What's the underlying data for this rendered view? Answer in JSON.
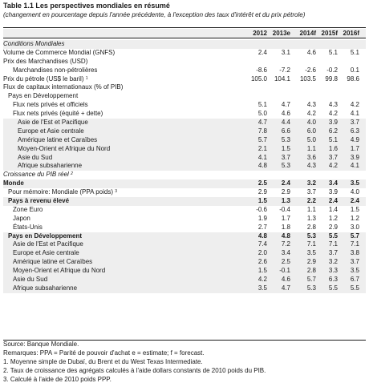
{
  "title": "Table 1.1 Les perspectives mondiales en résumé",
  "subtitle": "(changement en pourcentage depuis l'année précédente, à l'exception des taux d'intérêt et du prix pétrole)",
  "columns": [
    "2012",
    "2013e",
    "2014f",
    "2015f",
    "2016f"
  ],
  "rows": [
    {
      "label": "Conditions Mondiales",
      "level": 0,
      "italic": true,
      "shaded": true,
      "values": []
    },
    {
      "label": "Volume de Commerce Mondial (GNFS)",
      "level": 0,
      "values": [
        "2.4",
        "3.1",
        "4.6",
        "5.1",
        "5.1"
      ]
    },
    {
      "label": "Prix des Marchandises (USD)",
      "level": 0,
      "values": []
    },
    {
      "label": "Marchandises non-pétrolières",
      "level": 2,
      "values": [
        "-8.6",
        "-7.2",
        "-2.6",
        "-0.2",
        "0.1"
      ]
    },
    {
      "label": "Prix du pétrole (US$ le baril)",
      "sup": "1",
      "level": 0,
      "values": [
        "105.0",
        "104.1",
        "103.5",
        "99.8",
        "98.6"
      ]
    },
    {
      "label": "Flux de capitaux internationaux (% of PIB)",
      "level": 0,
      "values": []
    },
    {
      "label": "Pays en Développement",
      "level": 1,
      "values": []
    },
    {
      "label": "Flux nets privés et officiels",
      "level": 2,
      "values": [
        "5.1",
        "4.7",
        "4.3",
        "4.3",
        "4.2"
      ]
    },
    {
      "label": "Flux nets privés (équité + dette)",
      "level": 2,
      "values": [
        "5.0",
        "4.6",
        "4.2",
        "4.2",
        "4.1"
      ]
    },
    {
      "label": "Asie de l'Est et Pacifique",
      "level": 3,
      "shaded": true,
      "values": [
        "4.7",
        "4.4",
        "4.0",
        "3.9",
        "3.7"
      ]
    },
    {
      "label": "Europe et Asie centrale",
      "level": 3,
      "shaded": true,
      "values": [
        "7.8",
        "6.6",
        "6.0",
        "6.2",
        "6.3"
      ]
    },
    {
      "label": "Amérique latine et Caraïbes",
      "level": 3,
      "shaded": true,
      "values": [
        "5.7",
        "5.3",
        "5.0",
        "5.1",
        "4.9"
      ]
    },
    {
      "label": "Moyen-Orient et Afrique du Nord",
      "level": 3,
      "shaded": true,
      "values": [
        "2.1",
        "1.5",
        "1.1",
        "1.6",
        "1.7"
      ]
    },
    {
      "label": "Asie du Sud",
      "level": 3,
      "shaded": true,
      "values": [
        "4.1",
        "3.7",
        "3.6",
        "3.7",
        "3.9"
      ]
    },
    {
      "label": "Afrique subsaharienne",
      "level": 3,
      "shaded": true,
      "values": [
        "4.8",
        "5.3",
        "4.3",
        "4.2",
        "4.1"
      ]
    },
    {
      "label": "Croissance du PIB réel",
      "sup": "2",
      "level": 0,
      "italic": true,
      "values": []
    },
    {
      "label": "Monde",
      "level": 0,
      "bold": true,
      "shaded": true,
      "values": [
        "2.5",
        "2.4",
        "3.2",
        "3.4",
        "3.5"
      ]
    },
    {
      "label": "Pour mémoire: Mondiale (PPA poids)",
      "sup": "3",
      "level": 1,
      "values": [
        "2.9",
        "2.9",
        "3.7",
        "3.9",
        "4.0"
      ]
    },
    {
      "label": "Pays à revenu élevé",
      "level": 1,
      "bold": true,
      "shaded": true,
      "values": [
        "1.5",
        "1.3",
        "2.2",
        "2.4",
        "2.4"
      ]
    },
    {
      "label": "Zone Euro",
      "level": 2,
      "values": [
        "-0.6",
        "-0.4",
        "1.1",
        "1.4",
        "1.5"
      ]
    },
    {
      "label": "Japon",
      "level": 2,
      "values": [
        "1.9",
        "1.7",
        "1.3",
        "1.2",
        "1.2"
      ]
    },
    {
      "label": "États-Unis",
      "level": 2,
      "values": [
        "2.7",
        "1.8",
        "2.8",
        "2.9",
        "3.0"
      ]
    },
    {
      "label": "Pays en Développement",
      "level": 1,
      "bold": true,
      "shaded": true,
      "values": [
        "4.8",
        "4.8",
        "5.3",
        "5.5",
        "5.7"
      ]
    },
    {
      "label": "Asie de l'Est et Pacifique",
      "level": 2,
      "shaded": true,
      "values": [
        "7.4",
        "7.2",
        "7.1",
        "7.1",
        "7.1"
      ]
    },
    {
      "label": "Europe et Asie centrale",
      "level": 2,
      "shaded": true,
      "values": [
        "2.0",
        "3.4",
        "3.5",
        "3.7",
        "3.8"
      ]
    },
    {
      "label": "Amérique latine et Caraïbes",
      "level": 2,
      "shaded": true,
      "values": [
        "2.6",
        "2.5",
        "2.9",
        "3.2",
        "3.7"
      ]
    },
    {
      "label": "Moyen-Orient et Afrique du Nord",
      "level": 2,
      "shaded": true,
      "values": [
        "1.5",
        "-0.1",
        "2.8",
        "3.3",
        "3.5"
      ]
    },
    {
      "label": "Asie du Sud",
      "level": 2,
      "shaded": true,
      "values": [
        "4.2",
        "4.6",
        "5.7",
        "6.3",
        "6.7"
      ]
    },
    {
      "label": "Afrique subsaharienne",
      "level": 2,
      "shaded": true,
      "values": [
        "3.5",
        "4.7",
        "5.3",
        "5.5",
        "5.5"
      ]
    }
  ],
  "notes": {
    "source": "Source: Banque Mondiale.",
    "remarks": "Remarques: PPA = Parité de pouvoir d'achat e = estimate; f = forecast.",
    "note1": "1. Moyenne simple de Dubaï, du Brent et du West Texas Intermediate.",
    "note2": "2. Taux de croissance des agrégats calculés à l'aide dollars constants de 2010 poids du PIB.",
    "note3": "3. Calculé à l'aide de 2010 poids PPP."
  }
}
